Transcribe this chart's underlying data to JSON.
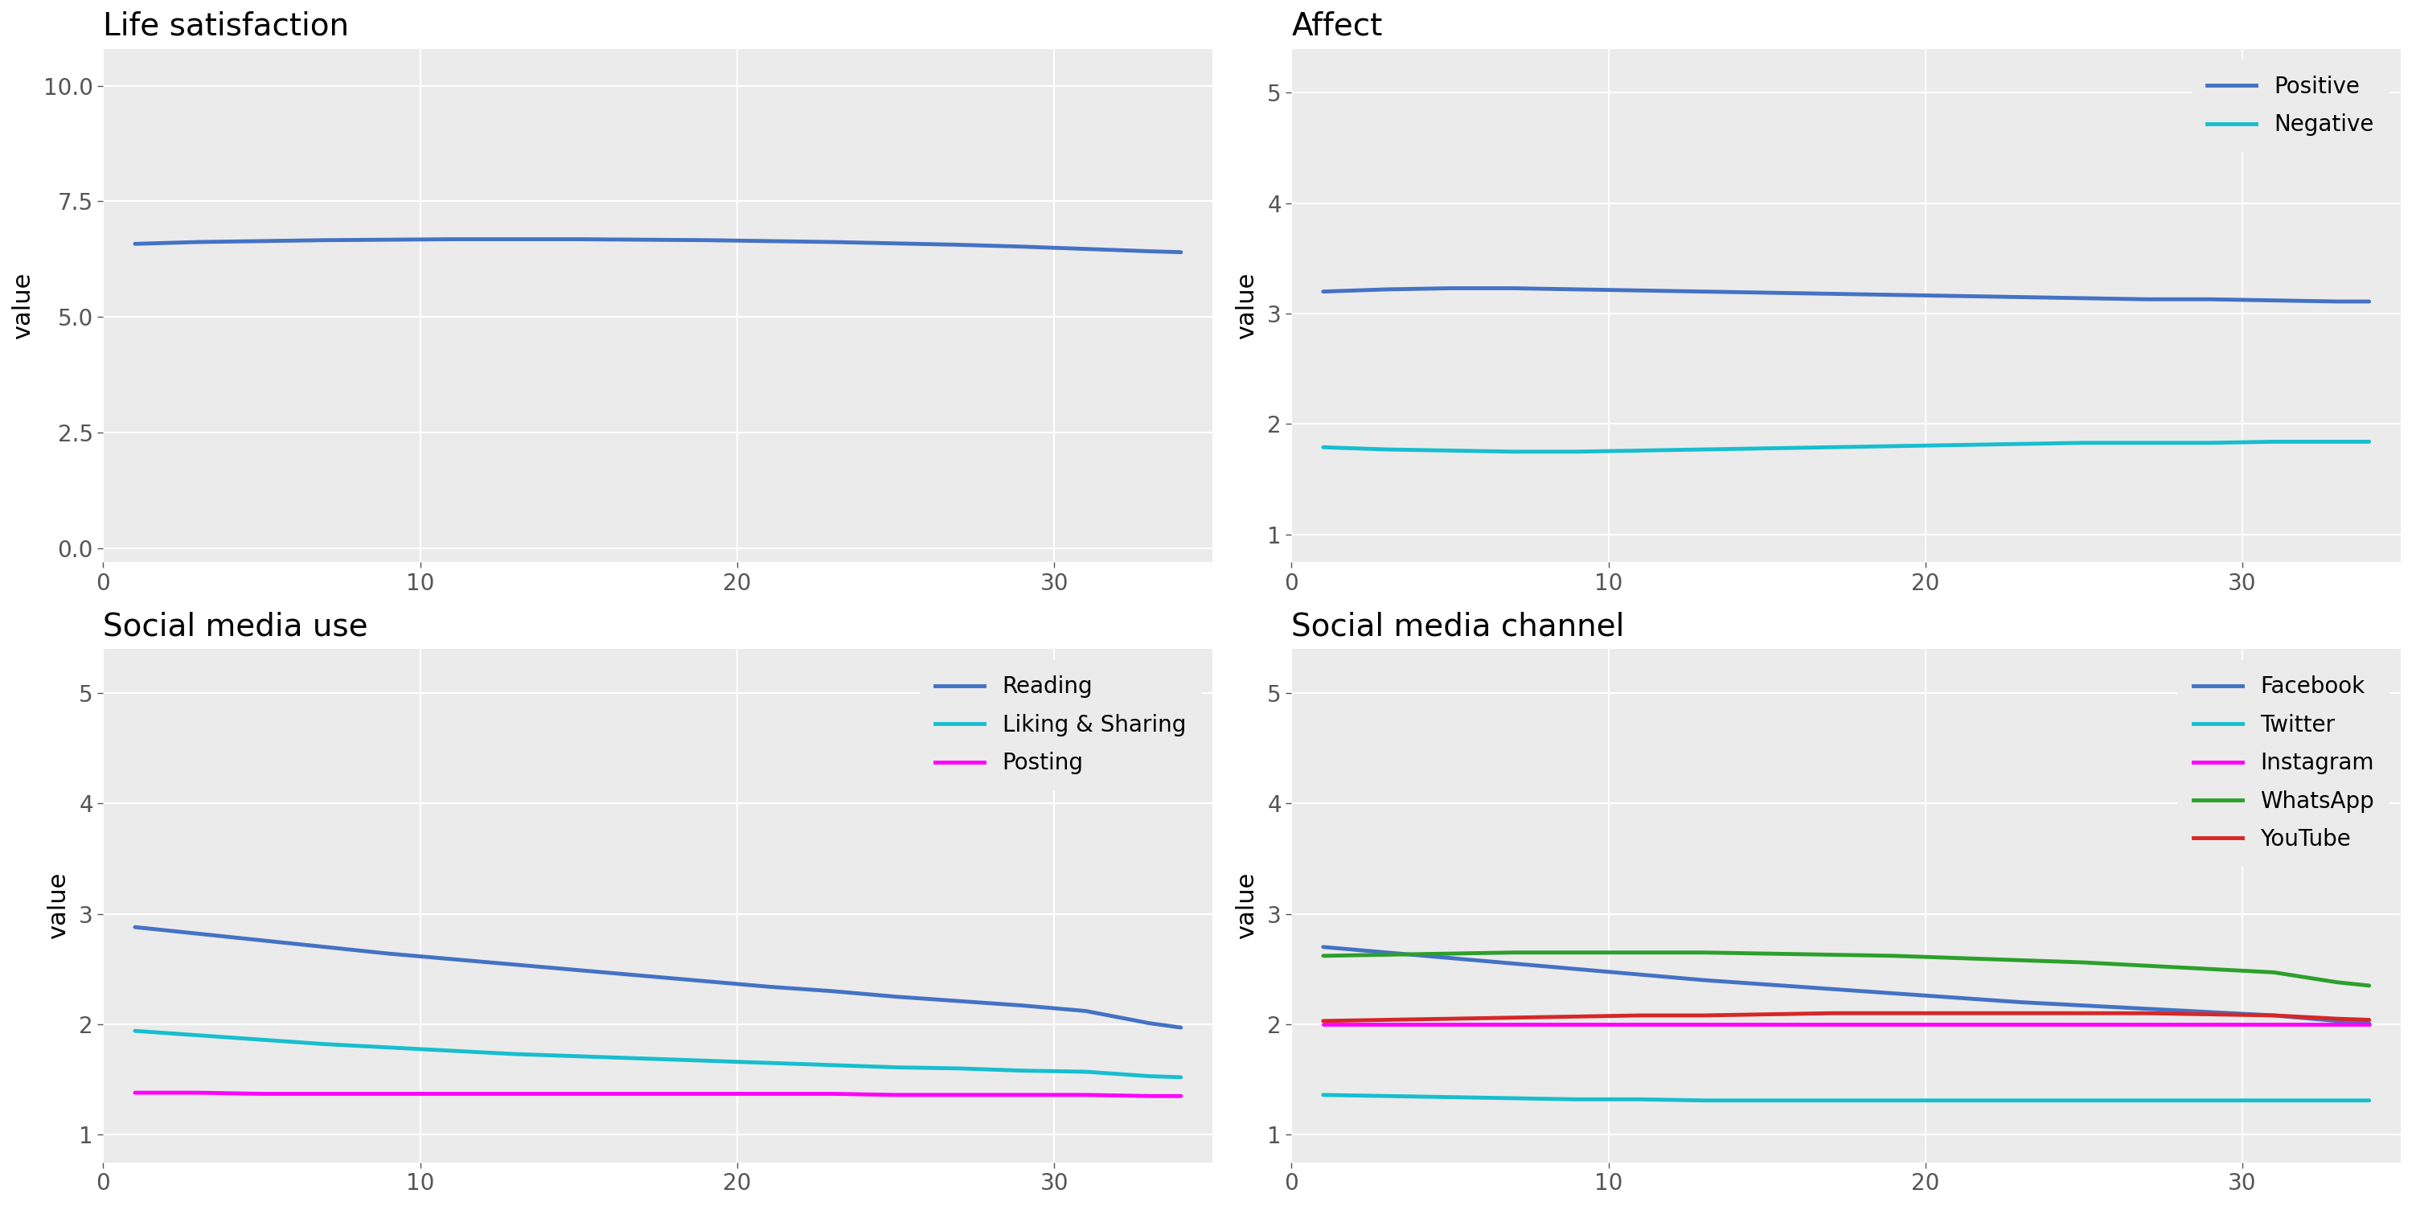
{
  "fig_background": "#ffffff",
  "panel_background": "#ebebeb",
  "grid_color": "#ffffff",
  "title_fontsize": 28,
  "axis_label_fontsize": 22,
  "tick_fontsize": 20,
  "legend_fontsize": 20,
  "linewidth": 3.5,
  "panels": [
    {
      "title": "Life satisfaction",
      "ylabel": "value",
      "xlim": [
        0,
        35
      ],
      "ylim": [
        -0.3,
        10.8
      ],
      "yticks": [
        0.0,
        2.5,
        5.0,
        7.5,
        10.0
      ],
      "ytick_labels": [
        "0.0",
        "2.5",
        "5.0",
        "7.5",
        "10.0"
      ],
      "xticks": [
        0,
        10,
        20,
        30
      ],
      "xtick_labels": [
        "0",
        "10",
        "20",
        "30"
      ],
      "series": [
        {
          "label": null,
          "color": "#4472C4",
          "x": [
            1,
            3,
            5,
            7,
            9,
            11,
            13,
            15,
            17,
            19,
            21,
            23,
            25,
            27,
            29,
            31,
            33,
            34
          ],
          "y": [
            6.58,
            6.62,
            6.64,
            6.66,
            6.67,
            6.68,
            6.68,
            6.68,
            6.67,
            6.66,
            6.64,
            6.62,
            6.59,
            6.56,
            6.52,
            6.47,
            6.42,
            6.4
          ]
        }
      ],
      "legend": null
    },
    {
      "title": "Affect",
      "ylabel": "value",
      "xlim": [
        0,
        35
      ],
      "ylim": [
        0.75,
        5.4
      ],
      "yticks": [
        1,
        2,
        3,
        4,
        5
      ],
      "ytick_labels": [
        "1",
        "2",
        "3",
        "4",
        "5"
      ],
      "xticks": [
        0,
        10,
        20,
        30
      ],
      "xtick_labels": [
        "0",
        "10",
        "20",
        "30"
      ],
      "series": [
        {
          "label": "Positive",
          "color": "#4472C4",
          "x": [
            1,
            3,
            5,
            7,
            9,
            11,
            13,
            15,
            17,
            19,
            21,
            23,
            25,
            27,
            29,
            31,
            33,
            34
          ],
          "y": [
            3.2,
            3.22,
            3.23,
            3.23,
            3.22,
            3.21,
            3.2,
            3.19,
            3.18,
            3.17,
            3.16,
            3.15,
            3.14,
            3.13,
            3.13,
            3.12,
            3.11,
            3.11
          ]
        },
        {
          "label": "Negative",
          "color": "#17BECF",
          "x": [
            1,
            3,
            5,
            7,
            9,
            11,
            13,
            15,
            17,
            19,
            21,
            23,
            25,
            27,
            29,
            31,
            33,
            34
          ],
          "y": [
            1.79,
            1.77,
            1.76,
            1.75,
            1.75,
            1.76,
            1.77,
            1.78,
            1.79,
            1.8,
            1.81,
            1.82,
            1.83,
            1.83,
            1.83,
            1.84,
            1.84,
            1.84
          ]
        }
      ],
      "legend": true
    },
    {
      "title": "Social media use",
      "ylabel": "value",
      "xlim": [
        0,
        35
      ],
      "ylim": [
        0.75,
        5.4
      ],
      "yticks": [
        1,
        2,
        3,
        4,
        5
      ],
      "ytick_labels": [
        "1",
        "2",
        "3",
        "4",
        "5"
      ],
      "xticks": [
        0,
        10,
        20,
        30
      ],
      "xtick_labels": [
        "0",
        "10",
        "20",
        "30"
      ],
      "series": [
        {
          "label": "Reading",
          "color": "#4472C4",
          "x": [
            1,
            3,
            5,
            7,
            9,
            11,
            13,
            15,
            17,
            19,
            21,
            23,
            25,
            27,
            29,
            31,
            33,
            34
          ],
          "y": [
            2.88,
            2.82,
            2.76,
            2.7,
            2.64,
            2.59,
            2.54,
            2.49,
            2.44,
            2.39,
            2.34,
            2.3,
            2.25,
            2.21,
            2.17,
            2.12,
            2.01,
            1.97
          ]
        },
        {
          "label": "Liking & Sharing",
          "color": "#17BECF",
          "x": [
            1,
            3,
            5,
            7,
            9,
            11,
            13,
            15,
            17,
            19,
            21,
            23,
            25,
            27,
            29,
            31,
            33,
            34
          ],
          "y": [
            1.94,
            1.9,
            1.86,
            1.82,
            1.79,
            1.76,
            1.73,
            1.71,
            1.69,
            1.67,
            1.65,
            1.63,
            1.61,
            1.6,
            1.58,
            1.57,
            1.53,
            1.52
          ]
        },
        {
          "label": "Posting",
          "color": "#FF00FF",
          "x": [
            1,
            3,
            5,
            7,
            9,
            11,
            13,
            15,
            17,
            19,
            21,
            23,
            25,
            27,
            29,
            31,
            33,
            34
          ],
          "y": [
            1.38,
            1.38,
            1.37,
            1.37,
            1.37,
            1.37,
            1.37,
            1.37,
            1.37,
            1.37,
            1.37,
            1.37,
            1.36,
            1.36,
            1.36,
            1.36,
            1.35,
            1.35
          ]
        }
      ],
      "legend": true
    },
    {
      "title": "Social media channel",
      "ylabel": "value",
      "xlim": [
        0,
        35
      ],
      "ylim": [
        0.75,
        5.4
      ],
      "yticks": [
        1,
        2,
        3,
        4,
        5
      ],
      "ytick_labels": [
        "1",
        "2",
        "3",
        "4",
        "5"
      ],
      "xticks": [
        0,
        10,
        20,
        30
      ],
      "xtick_labels": [
        "0",
        "10",
        "20",
        "30"
      ],
      "series": [
        {
          "label": "Facebook",
          "color": "#4472C4",
          "x": [
            1,
            3,
            5,
            7,
            9,
            11,
            13,
            15,
            17,
            19,
            21,
            23,
            25,
            27,
            29,
            31,
            33,
            34
          ],
          "y": [
            2.7,
            2.65,
            2.6,
            2.55,
            2.5,
            2.45,
            2.4,
            2.36,
            2.32,
            2.28,
            2.24,
            2.2,
            2.17,
            2.14,
            2.11,
            2.08,
            2.03,
            2.01
          ]
        },
        {
          "label": "Twitter",
          "color": "#17BECF",
          "x": [
            1,
            3,
            5,
            7,
            9,
            11,
            13,
            15,
            17,
            19,
            21,
            23,
            25,
            27,
            29,
            31,
            33,
            34
          ],
          "y": [
            1.36,
            1.35,
            1.34,
            1.33,
            1.32,
            1.32,
            1.31,
            1.31,
            1.31,
            1.31,
            1.31,
            1.31,
            1.31,
            1.31,
            1.31,
            1.31,
            1.31,
            1.31
          ]
        },
        {
          "label": "Instagram",
          "color": "#FF00FF",
          "x": [
            1,
            3,
            5,
            7,
            9,
            11,
            13,
            15,
            17,
            19,
            21,
            23,
            25,
            27,
            29,
            31,
            33,
            34
          ],
          "y": [
            2.0,
            2.0,
            2.0,
            2.0,
            2.0,
            2.0,
            2.0,
            2.0,
            2.0,
            2.0,
            2.0,
            2.0,
            2.0,
            2.0,
            2.0,
            2.0,
            2.0,
            2.0
          ]
        },
        {
          "label": "WhatsApp",
          "color": "#2CA02C",
          "x": [
            1,
            3,
            5,
            7,
            9,
            11,
            13,
            15,
            17,
            19,
            21,
            23,
            25,
            27,
            29,
            31,
            33,
            34
          ],
          "y": [
            2.62,
            2.63,
            2.64,
            2.65,
            2.65,
            2.65,
            2.65,
            2.64,
            2.63,
            2.62,
            2.6,
            2.58,
            2.56,
            2.53,
            2.5,
            2.47,
            2.38,
            2.35
          ]
        },
        {
          "label": "YouTube",
          "color": "#D62728",
          "x": [
            1,
            3,
            5,
            7,
            9,
            11,
            13,
            15,
            17,
            19,
            21,
            23,
            25,
            27,
            29,
            31,
            33,
            34
          ],
          "y": [
            2.03,
            2.04,
            2.05,
            2.06,
            2.07,
            2.08,
            2.08,
            2.09,
            2.1,
            2.1,
            2.1,
            2.1,
            2.1,
            2.1,
            2.09,
            2.08,
            2.05,
            2.04
          ]
        }
      ],
      "legend": true
    }
  ]
}
